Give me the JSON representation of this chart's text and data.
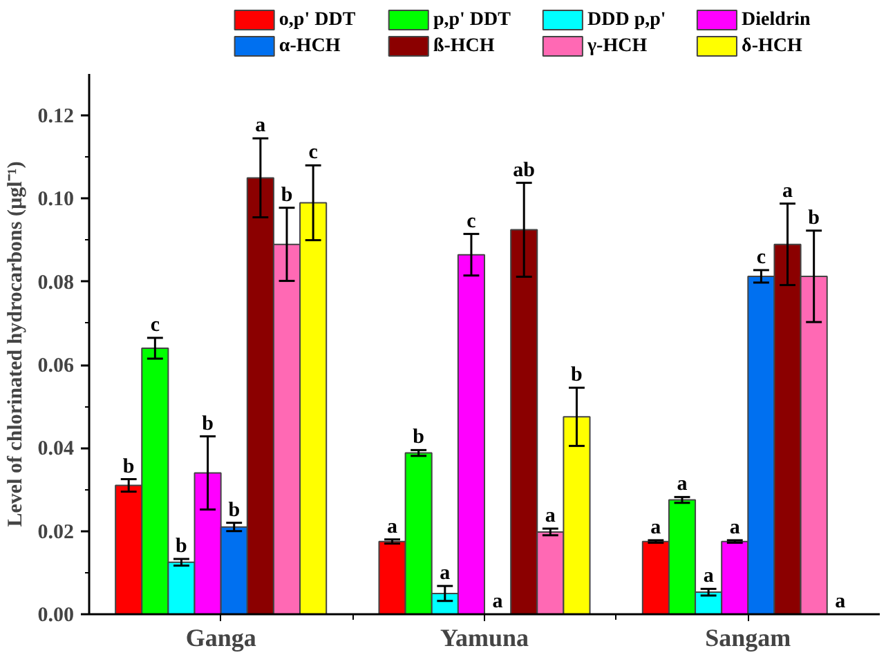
{
  "chart_data": {
    "type": "bar",
    "ylabel": "Level of chlorinated hydrocarbons (µgl⁻¹)",
    "categories": [
      "Ganga",
      "Yamuna",
      "Sangam"
    ],
    "series": [
      {
        "name": "o,p' DDT",
        "color": "#ff0000",
        "values": [
          0.031,
          0.0175,
          0.0175
        ],
        "errors": [
          0.0015,
          0.0005,
          0.0003
        ],
        "value_labels": [
          "b",
          "a",
          "a"
        ]
      },
      {
        "name": "p,p' DDT",
        "color": "#00ff00",
        "values": [
          0.064,
          0.0388,
          0.0275
        ],
        "errors": [
          0.0025,
          0.0007,
          0.0007
        ],
        "value_labels": [
          "c",
          "b",
          "a"
        ]
      },
      {
        "name": "DDD p,p'",
        "color": "#00ffff",
        "values": [
          0.0125,
          0.005,
          0.0053
        ],
        "errors": [
          0.0008,
          0.0018,
          0.0008
        ],
        "value_labels": [
          "b",
          "a",
          "a"
        ]
      },
      {
        "name": "Dieldrin",
        "color": "#ff00ff",
        "values": [
          0.034,
          0.0865,
          0.0175
        ],
        "errors": [
          0.0088,
          0.005,
          0.0003
        ],
        "value_labels": [
          "b",
          "c",
          "a"
        ]
      },
      {
        "name": "α-HCH",
        "color": "#0070f0",
        "values": [
          0.021,
          0,
          0.0813
        ],
        "errors": [
          0.001,
          null,
          0.0015
        ],
        "value_labels": [
          "b",
          "a",
          "c"
        ]
      },
      {
        "name": "ß-HCH",
        "color": "#8b0000",
        "values": [
          0.105,
          0.0925,
          0.089
        ],
        "errors": [
          0.0095,
          0.0113,
          0.0098
        ],
        "value_labels": [
          "a",
          "ab",
          "a"
        ]
      },
      {
        "name": "γ-HCH",
        "color": "#ff69b4",
        "values": [
          0.089,
          0.0198,
          0.0813
        ],
        "errors": [
          0.0088,
          0.0008,
          0.011
        ],
        "value_labels": [
          "b",
          "a",
          "b"
        ]
      },
      {
        "name": "δ-HCH",
        "color": "#ffff00",
        "values": [
          0.099,
          0.0475,
          0
        ],
        "errors": [
          0.009,
          0.007,
          null
        ],
        "value_labels": [
          "c",
          "b",
          "a"
        ]
      }
    ],
    "ylim": [
      0,
      0.13
    ],
    "yticks": [
      {
        "value": 0,
        "label": "0.00"
      },
      {
        "value": 0.01,
        "label": null
      },
      {
        "value": 0.02,
        "label": "0.02"
      },
      {
        "value": 0.03,
        "label": null
      },
      {
        "value": 0.04,
        "label": "0.04"
      },
      {
        "value": 0.05,
        "label": null
      },
      {
        "value": 0.06,
        "label": "0.06"
      },
      {
        "value": 0.07,
        "label": null
      },
      {
        "value": 0.08,
        "label": "0.08"
      },
      {
        "value": 0.09,
        "label": null
      },
      {
        "value": 0.1,
        "label": "0.10"
      },
      {
        "value": 0.11,
        "label": null
      },
      {
        "value": 0.12,
        "label": "0.12"
      }
    ],
    "grid": false,
    "legend": "top"
  }
}
